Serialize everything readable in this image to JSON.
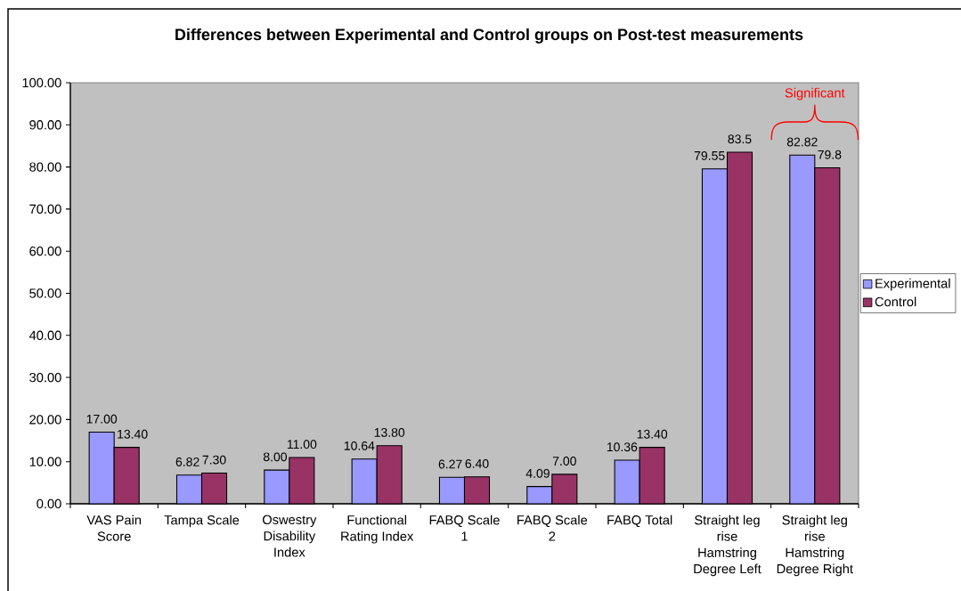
{
  "chart_data": {
    "type": "bar",
    "title": "Differences between Experimental and Control groups on Post-test measurements",
    "categories": [
      "VAS Pain Score",
      "Tampa Scale",
      "Oswestry Disability Index",
      "Functional Rating Index",
      "FABQ Scale 1",
      "FABQ Scale 2",
      "FABQ Total",
      "Straight leg rise Hamstring Degree Left",
      "Straight leg rise Hamstring Degree Right"
    ],
    "series": [
      {
        "name": "Experimental",
        "color": "#9999ff",
        "values": [
          17.0,
          6.82,
          8.0,
          10.64,
          6.27,
          4.09,
          10.36,
          79.55,
          82.82
        ],
        "value_labels": [
          "17.00",
          "6.82",
          "8.00",
          "10.64",
          "6.27",
          "4.09",
          "10.36",
          "79.55",
          "82.82"
        ]
      },
      {
        "name": "Control",
        "color": "#993366",
        "values": [
          13.4,
          7.3,
          11.0,
          13.8,
          6.4,
          7.0,
          13.4,
          83.5,
          79.8
        ],
        "value_labels": [
          "13.40",
          "7.30",
          "11.00",
          "13.80",
          "6.40",
          "7.00",
          "13.40",
          "83.5",
          "79.8"
        ]
      }
    ],
    "ylim": [
      0,
      100
    ],
    "yticks": [
      {
        "value": 0,
        "label": "0.00"
      },
      {
        "value": 10,
        "label": "10.00"
      },
      {
        "value": 20,
        "label": "20.00"
      },
      {
        "value": 30,
        "label": "30.00"
      },
      {
        "value": 40,
        "label": "40.00"
      },
      {
        "value": 50,
        "label": "50.00"
      },
      {
        "value": 60,
        "label": "60.00"
      },
      {
        "value": 70,
        "label": "70.00"
      },
      {
        "value": 80,
        "label": "80.00"
      },
      {
        "value": 90,
        "label": "90.00"
      },
      {
        "value": 100,
        "label": "100.00"
      }
    ],
    "legend": "right",
    "annotations": [
      "Significant"
    ]
  }
}
